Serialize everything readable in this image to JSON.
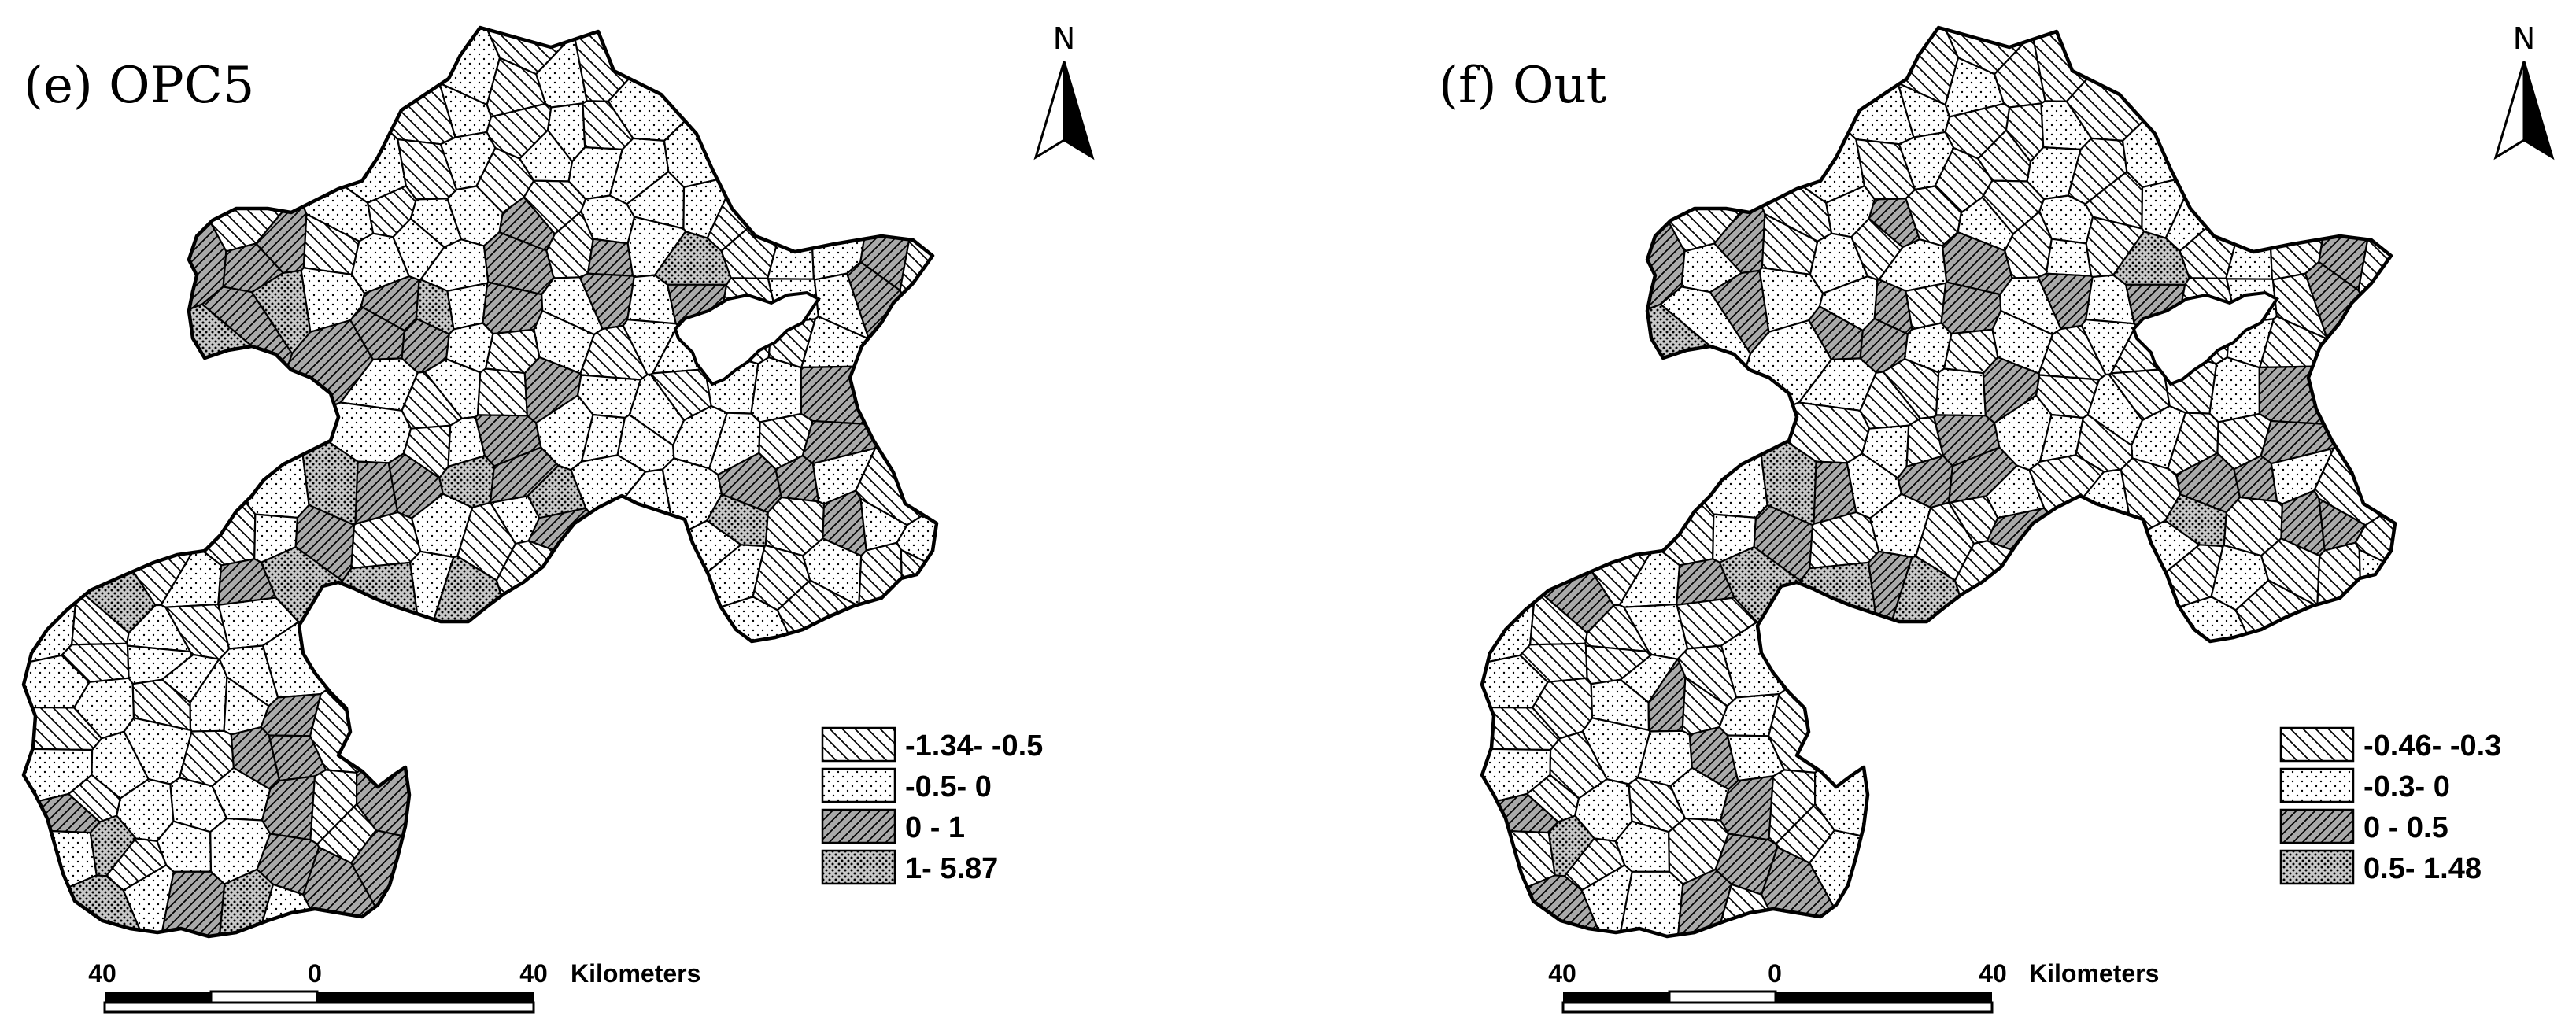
{
  "panels": [
    {
      "id": "e",
      "title": "(e) OPC5",
      "north_label": "N",
      "legend": [
        {
          "label": "-1.34- -0.5",
          "pattern": "hatch-nw"
        },
        {
          "label": "-0.5- 0",
          "pattern": "dots-light"
        },
        {
          "label": "0 - 1",
          "pattern": "hatch-ne-gray"
        },
        {
          "label": "1- 5.87",
          "pattern": "dots-dense-gray"
        }
      ],
      "scale_bar": {
        "left": "40",
        "mid": "0",
        "right": "40",
        "unit": "Kilometers"
      },
      "region_classes": [
        0,
        1,
        0,
        1,
        0,
        0,
        1,
        0,
        1,
        0,
        1,
        1,
        0,
        1,
        0,
        1,
        1,
        1,
        1,
        0,
        1,
        0,
        1,
        1,
        2,
        0,
        1,
        1,
        1,
        0,
        2,
        2,
        2,
        0,
        1,
        1,
        1,
        2,
        0,
        2,
        1,
        3,
        0,
        1,
        1,
        2,
        0,
        2,
        3,
        1,
        2,
        3,
        1,
        2,
        1,
        2,
        1,
        2,
        0,
        1,
        1,
        2,
        3,
        2,
        2,
        2,
        1,
        0,
        1,
        0,
        1,
        1,
        0,
        0,
        1,
        1,
        0,
        1,
        0,
        2,
        1,
        1,
        0,
        1,
        1,
        2,
        1,
        0,
        1,
        2,
        1,
        1,
        1,
        1,
        1,
        0,
        2,
        1,
        3,
        2,
        2,
        3,
        2,
        3,
        1,
        1,
        1,
        2,
        2,
        1,
        0,
        0,
        1,
        2,
        0,
        1,
        0,
        1,
        2,
        1,
        3,
        0,
        2,
        1,
        1,
        3,
        0,
        1,
        2,
        3,
        3,
        1,
        3
      ]
    },
    {
      "id": "f",
      "title": "(f) Out",
      "north_label": "N",
      "legend": [
        {
          "label": "-0.46- -0.3",
          "pattern": "hatch-nw"
        },
        {
          "label": "-0.3- 0",
          "pattern": "dots-light"
        },
        {
          "label": "0 - 0.5",
          "pattern": "hatch-ne-gray"
        },
        {
          "label": "0.5- 1.48",
          "pattern": "dots-dense-gray"
        }
      ],
      "scale_bar": {
        "left": "40",
        "mid": "0",
        "right": "40",
        "unit": "Kilometers"
      },
      "region_classes": [
        0,
        0,
        1,
        0,
        0,
        1,
        1,
        0,
        0,
        1,
        0,
        1,
        0,
        1,
        0,
        0,
        1,
        0,
        1,
        0,
        0,
        1,
        2,
        0,
        1,
        0,
        1,
        0,
        1,
        1,
        2,
        1,
        2,
        0,
        1,
        0,
        1,
        2,
        0,
        1,
        0,
        3,
        0,
        1,
        0,
        2,
        0,
        1,
        2,
        1,
        1,
        2,
        0,
        2,
        1,
        2,
        1,
        2,
        0,
        1,
        0,
        2,
        3,
        1,
        2,
        2,
        1,
        0,
        1,
        0,
        1,
        0,
        0,
        1,
        0,
        1,
        0,
        0,
        1,
        2,
        0,
        1,
        0,
        0,
        1,
        2,
        0,
        1,
        0,
        2,
        1,
        1,
        0,
        1,
        0,
        0,
        2,
        1,
        3,
        2,
        1,
        2,
        2,
        1,
        0,
        1,
        0,
        2,
        2,
        1,
        0,
        0,
        1,
        2,
        0,
        1,
        0,
        0,
        2,
        1,
        3,
        0,
        2,
        2,
        0,
        2,
        0,
        1,
        2,
        3,
        3,
        2,
        3
      ]
    }
  ]
}
